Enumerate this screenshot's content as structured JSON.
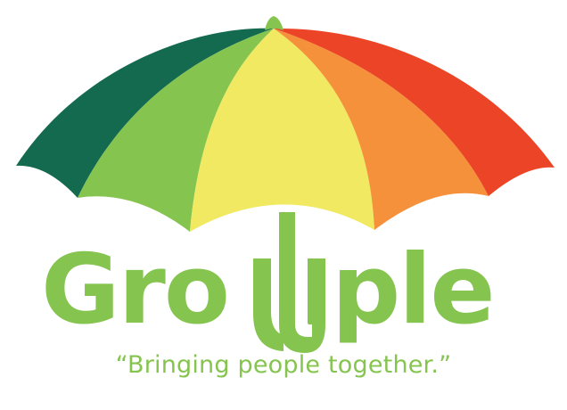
{
  "logo": {
    "wordmark": "Grouple",
    "tagline": "“Bringing people together.”",
    "colors": {
      "dark_green": "#146A4F",
      "green": "#86C450",
      "yellow": "#F0E961",
      "orange": "#F5913A",
      "red": "#EB4426",
      "text_green": "#86C450"
    }
  }
}
